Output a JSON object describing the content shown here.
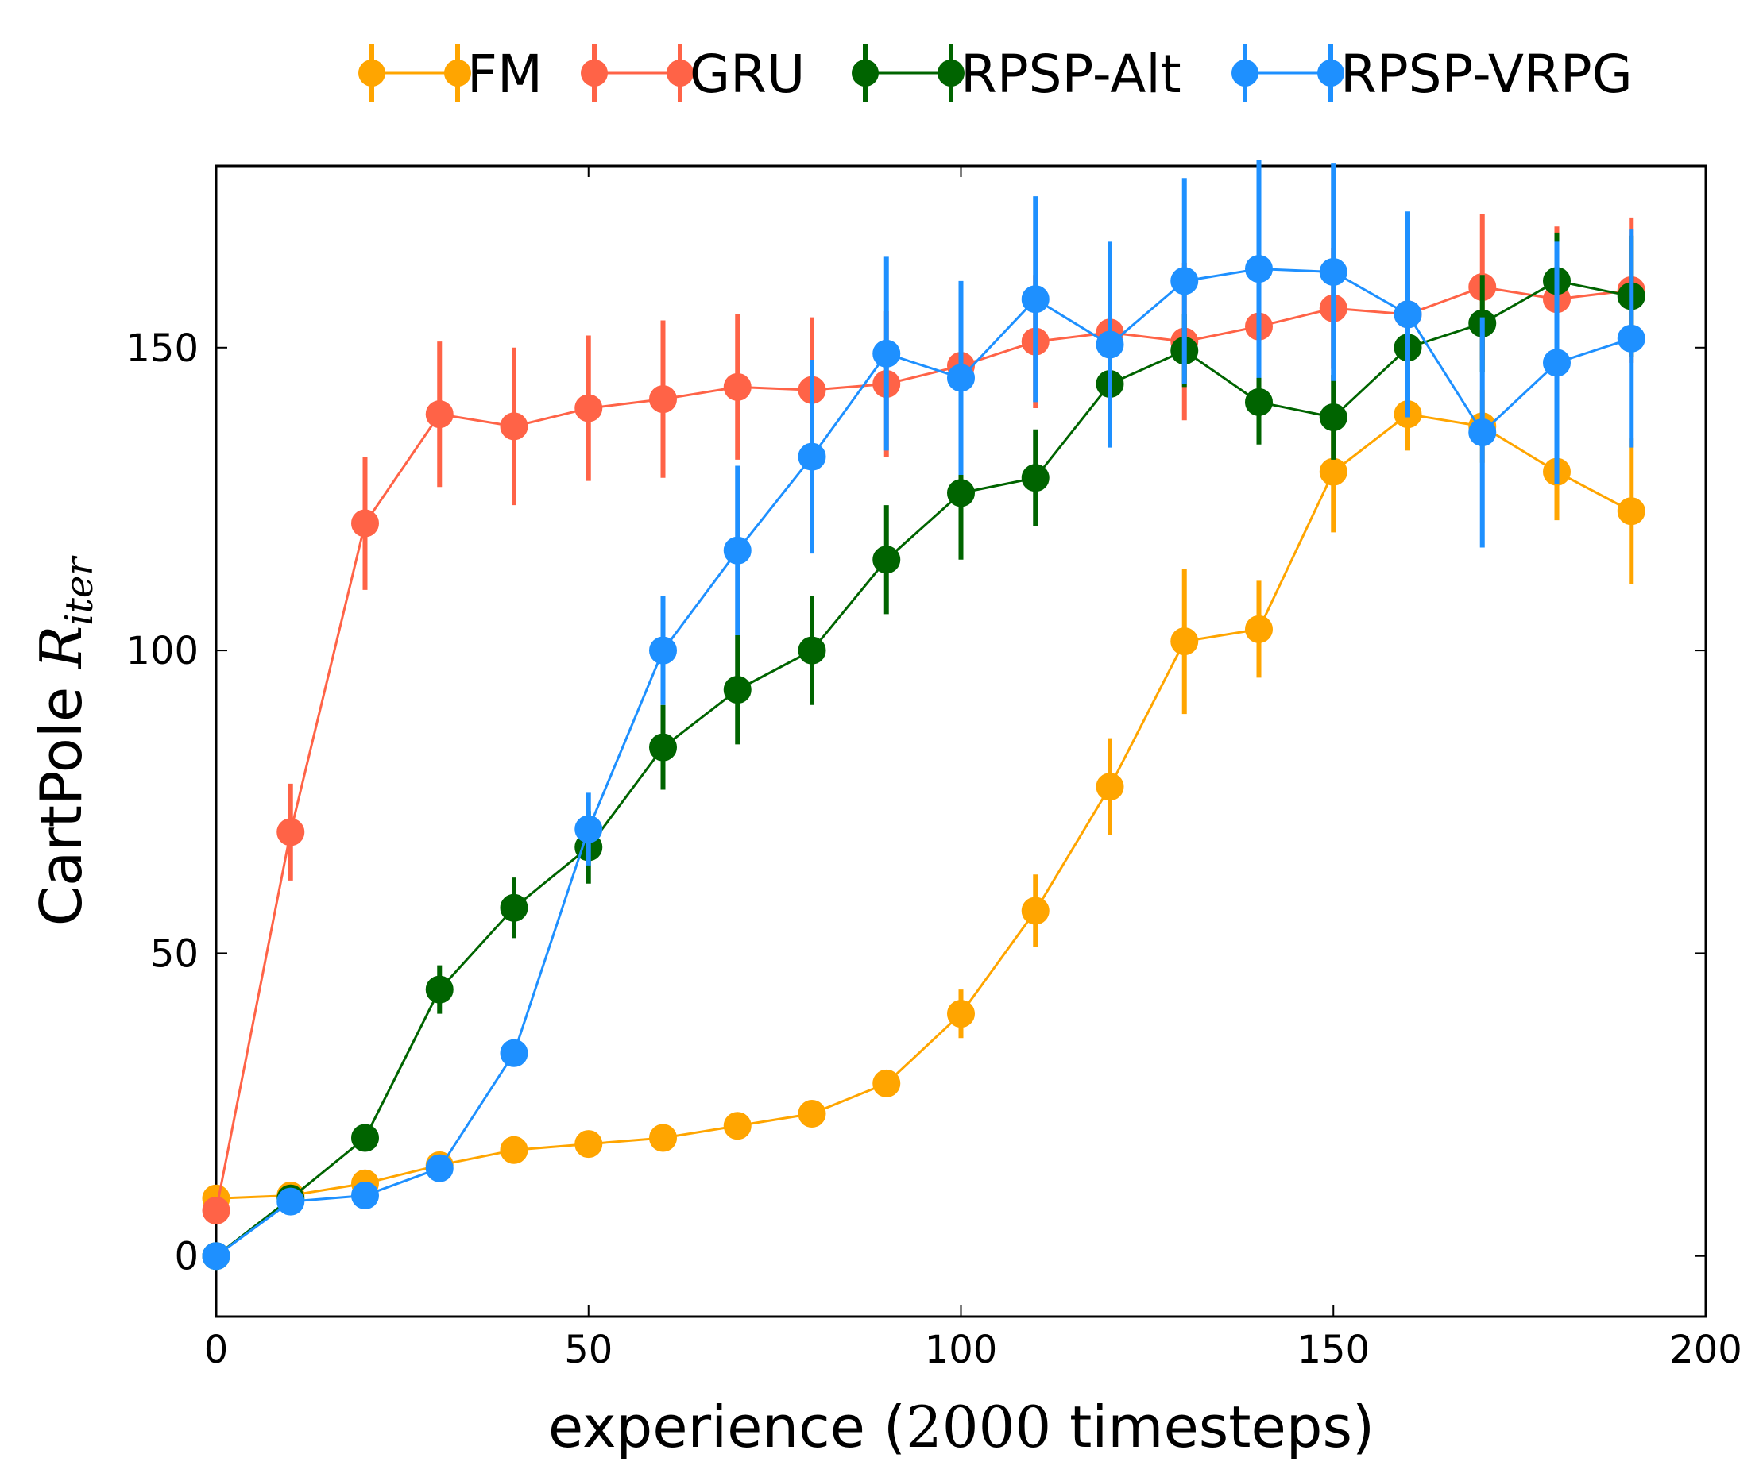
{
  "chart_data": {
    "type": "line",
    "title": "",
    "xlabel": "experience (2000 timesteps)",
    "ylabel": "CartPole R_iter",
    "xlabel_parts": {
      "pre": "experience (",
      "num": "2000",
      "post": " timesteps)"
    },
    "ylabel_parts": {
      "pre": "CartPole ",
      "sym": "R",
      "sub": "iter"
    },
    "xlim": [
      0,
      200
    ],
    "ylim": [
      -10,
      180
    ],
    "xticks": [
      0,
      50,
      100,
      150,
      200
    ],
    "yticks": [
      0,
      50,
      100,
      150
    ],
    "legend_position": "top, above plot",
    "grid": false,
    "x": [
      0,
      10,
      20,
      30,
      40,
      50,
      60,
      70,
      80,
      90,
      100,
      110,
      120,
      130,
      140,
      150,
      160,
      170,
      180,
      190
    ],
    "series": [
      {
        "name": "FM",
        "color": "#FFA500",
        "values": [
          9.5,
          10,
          12,
          15,
          17.5,
          18.5,
          19.5,
          21.5,
          23.5,
          28.5,
          40,
          57,
          77.5,
          101.5,
          103.5,
          129.5,
          139,
          137,
          129.5,
          123
        ],
        "errors": [
          0,
          0,
          0,
          0,
          0,
          0,
          0,
          0,
          0,
          0,
          4,
          6,
          8,
          12,
          8,
          10,
          6,
          6,
          8,
          12
        ]
      },
      {
        "name": "GRU",
        "color": "#FF6347",
        "values": [
          7.5,
          70,
          121,
          139,
          137,
          140,
          141.5,
          143.5,
          143,
          144,
          147,
          151,
          152.5,
          151,
          153.5,
          156.5,
          155.5,
          160,
          158,
          159.5
        ],
        "errors": [
          0,
          8,
          11,
          12,
          13,
          12,
          13,
          12,
          12,
          12,
          12,
          11,
          11,
          13,
          11,
          10,
          9,
          12,
          12,
          12
        ]
      },
      {
        "name": "RPSP-Alt",
        "color": "#006400",
        "values": [
          0,
          9.5,
          19.5,
          44,
          57.5,
          67.5,
          84,
          93.5,
          100,
          115,
          126,
          128.5,
          144,
          149.5,
          141,
          138.5,
          150,
          154,
          161,
          158.5
        ],
        "errors": [
          0,
          0,
          0,
          4,
          5,
          6,
          7,
          9,
          9,
          9,
          11,
          8,
          10,
          6,
          7,
          7,
          8,
          8,
          8,
          10
        ]
      },
      {
        "name": "RPSP-VRPG",
        "color": "#1E90FF",
        "values": [
          0,
          9,
          10,
          14.5,
          33.5,
          70.5,
          100,
          116.5,
          132,
          149,
          145,
          158,
          150.5,
          161,
          163,
          162.5,
          155.5,
          136,
          147.5,
          151.5
        ],
        "errors": [
          0,
          0,
          0,
          0,
          0,
          6,
          9,
          14,
          16,
          16,
          16,
          17,
          17,
          17,
          18,
          18,
          17,
          19,
          20,
          18
        ]
      }
    ]
  }
}
